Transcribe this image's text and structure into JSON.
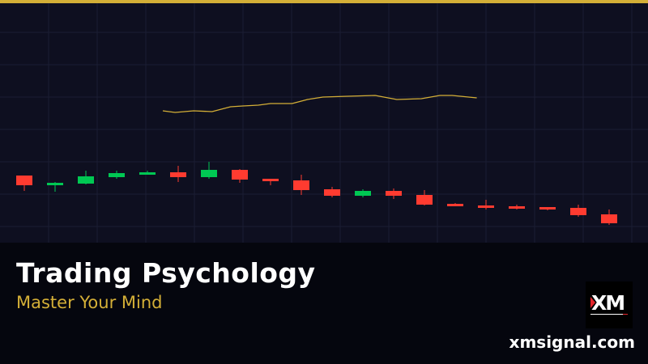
{
  "colors": {
    "accent": "#d4af37",
    "bullish": "#00c853",
    "bearish": "#ff3b30",
    "chart_bg": "#0e0f20",
    "grid": "#1b1d33",
    "ma_line": "#d4af37"
  },
  "banner": {
    "title": "Trading Psychology",
    "subtitle": "Master Your Mind",
    "logo_text": "XM",
    "site": "xmsignal.com"
  },
  "chart_data": {
    "type": "candlestick",
    "grid": true,
    "axes_visible": false,
    "candles": [
      {
        "o": 83,
        "h": 83,
        "l": 64,
        "c": 71
      },
      {
        "o": 71,
        "h": 75,
        "l": 63,
        "c": 74
      },
      {
        "o": 73,
        "h": 89,
        "l": 72,
        "c": 82
      },
      {
        "o": 81,
        "h": 89,
        "l": 79,
        "c": 86
      },
      {
        "o": 84,
        "h": 89,
        "l": 84,
        "c": 87
      },
      {
        "o": 87,
        "h": 95,
        "l": 75,
        "c": 81
      },
      {
        "o": 81,
        "h": 100,
        "l": 79,
        "c": 90
      },
      {
        "o": 90,
        "h": 91,
        "l": 74,
        "c": 78
      },
      {
        "o": 79,
        "h": 79,
        "l": 71,
        "c": 76
      },
      {
        "o": 77,
        "h": 84,
        "l": 59,
        "c": 65
      },
      {
        "o": 66,
        "h": 69,
        "l": 56,
        "c": 58
      },
      {
        "o": 58,
        "h": 66,
        "l": 56,
        "c": 64
      },
      {
        "o": 64,
        "h": 67,
        "l": 54,
        "c": 58
      },
      {
        "o": 59,
        "h": 65,
        "l": 46,
        "c": 47
      },
      {
        "o": 48,
        "h": 49,
        "l": 45,
        "c": 45
      },
      {
        "o": 46,
        "h": 53,
        "l": 41,
        "c": 43
      },
      {
        "o": 45,
        "h": 47,
        "l": 41,
        "c": 42
      },
      {
        "o": 44,
        "h": 44,
        "l": 40,
        "c": 41
      },
      {
        "o": 43,
        "h": 47,
        "l": 32,
        "c": 34
      },
      {
        "o": 35,
        "h": 41,
        "l": 22,
        "c": 24
      }
    ],
    "moving_average": [
      [
        4.5,
        163
      ],
      [
        4.9,
        161
      ],
      [
        5.5,
        163
      ],
      [
        6.1,
        162
      ],
      [
        6.7,
        168
      ],
      [
        7.1,
        169
      ],
      [
        7.6,
        170
      ],
      [
        8.0,
        172
      ],
      [
        8.7,
        172
      ],
      [
        9.2,
        177
      ],
      [
        9.7,
        180
      ],
      [
        10.5,
        181
      ],
      [
        11.4,
        182
      ],
      [
        12.1,
        177
      ],
      [
        12.9,
        178
      ],
      [
        13.5,
        182
      ],
      [
        13.9,
        182
      ],
      [
        14.7,
        179
      ]
    ]
  }
}
